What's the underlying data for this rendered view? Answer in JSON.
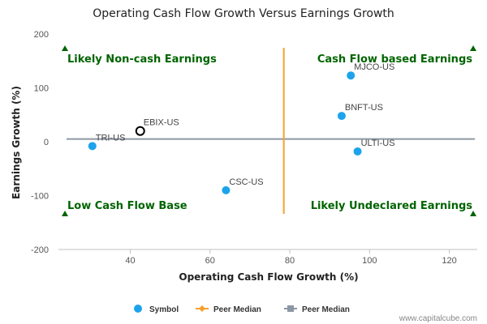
{
  "chart_data": {
    "type": "scatter",
    "title": "Operating Cash Flow Growth Versus Earnings Growth",
    "xlabel": "Operating Cash Flow Growth (%)",
    "ylabel": "Earnings Growth (%)",
    "xlim": [
      22,
      127
    ],
    "ylim": [
      -200,
      200
    ],
    "xticks": [
      40,
      60,
      80,
      100,
      120
    ],
    "yticks": [
      200,
      100,
      0,
      -100,
      -200
    ],
    "points": [
      {
        "label": "MJCO-US",
        "x": 95.3,
        "y": 123,
        "style": "filled"
      },
      {
        "label": "BNFT-US",
        "x": 93,
        "y": 48,
        "style": "filled"
      },
      {
        "label": "ULTI-US",
        "x": 97,
        "y": -18,
        "style": "filled"
      },
      {
        "label": "EBIX-US",
        "x": 42.5,
        "y": 20,
        "style": "hollow"
      },
      {
        "label": "TRI-US",
        "x": 30.5,
        "y": -8,
        "style": "filled"
      },
      {
        "label": "CSC-US",
        "x": 64,
        "y": -90,
        "style": "filled"
      }
    ],
    "peer_median_x": 78.5,
    "peer_median_y": 5,
    "quadrant_labels": [
      {
        "text": "Likely Non-cash Earnings",
        "position": "top-left"
      },
      {
        "text": "Cash Flow based Earnings",
        "position": "top-right"
      },
      {
        "text": "Low Cash Flow Base",
        "position": "bottom-left"
      },
      {
        "text": "Likely Undeclared Earnings",
        "position": "bottom-right"
      }
    ],
    "legend": [
      {
        "label": "Symbol",
        "marker": "circle",
        "color": "#1ca3ec"
      },
      {
        "label": "Peer Median",
        "marker": "diamond",
        "color": "#f7a02d"
      },
      {
        "label": "Peer Median",
        "marker": "square",
        "color": "#8d96a3"
      }
    ],
    "legend_position": "bottom-center",
    "grid": false,
    "colors": {
      "point": "#1ca3ec",
      "point_hollow_stroke": "#000000",
      "vertical_median": "#f7a02d",
      "horizontal_median": "#8d96a3",
      "quadrant_text": "#006400"
    }
  },
  "credit": "www.capitalcube.com"
}
